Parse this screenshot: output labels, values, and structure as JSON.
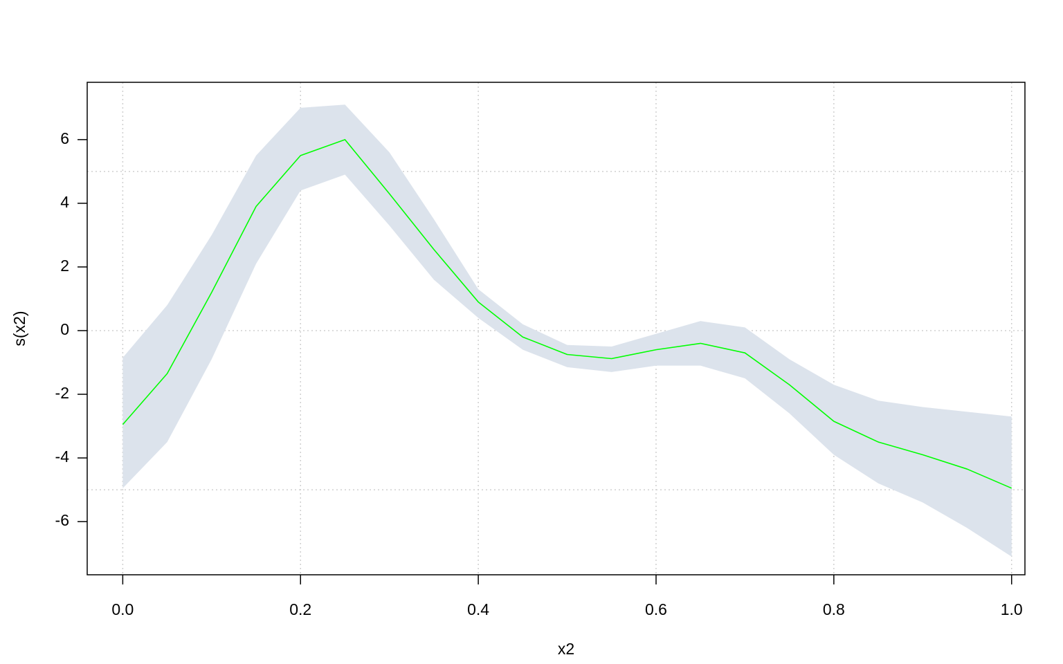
{
  "chart_data": {
    "type": "smooth",
    "xlabel": "x2",
    "ylabel": "s(x2)",
    "x": [
      0,
      0.05,
      0.1,
      0.15,
      0.2,
      0.25,
      0.3,
      0.35,
      0.4,
      0.45,
      0.5,
      0.55,
      0.6,
      0.65,
      0.7,
      0.75,
      0.8,
      0.85,
      0.9,
      0.95,
      1.0
    ],
    "fit": [
      -2.95,
      -1.35,
      1.2,
      3.9,
      5.5,
      6.0,
      4.3,
      2.55,
      0.9,
      -0.2,
      -0.75,
      -0.88,
      -0.6,
      -0.4,
      -0.7,
      -1.7,
      -2.85,
      -3.5,
      -3.9,
      -4.35,
      -4.95
    ],
    "upper": [
      -0.85,
      0.8,
      3.0,
      5.5,
      7.0,
      7.1,
      5.6,
      3.5,
      1.3,
      0.2,
      -0.45,
      -0.5,
      -0.1,
      0.3,
      0.1,
      -0.9,
      -1.7,
      -2.2,
      -2.4,
      -2.55,
      -2.7
    ],
    "lower": [
      -4.95,
      -3.5,
      -0.9,
      2.1,
      4.4,
      4.9,
      3.3,
      1.6,
      0.4,
      -0.6,
      -1.15,
      -1.3,
      -1.1,
      -1.1,
      -1.5,
      -2.6,
      -3.9,
      -4.8,
      -5.4,
      -6.2,
      -7.1
    ],
    "line_color": "#00ff00",
    "band_color": "#dce3ec",
    "xlim": [
      -0.04,
      1.015
    ],
    "ylim": [
      -7.67,
      7.8
    ],
    "xticks": [
      {
        "value": 0,
        "label": "0.0"
      },
      0.2,
      0.4,
      0.6,
      0.8,
      {
        "value": 1,
        "label": "1.0"
      }
    ],
    "yticks": [
      -6,
      -4,
      -2,
      0,
      2,
      4,
      6
    ],
    "ygrid": [
      -5,
      0,
      5
    ],
    "grid": true
  }
}
